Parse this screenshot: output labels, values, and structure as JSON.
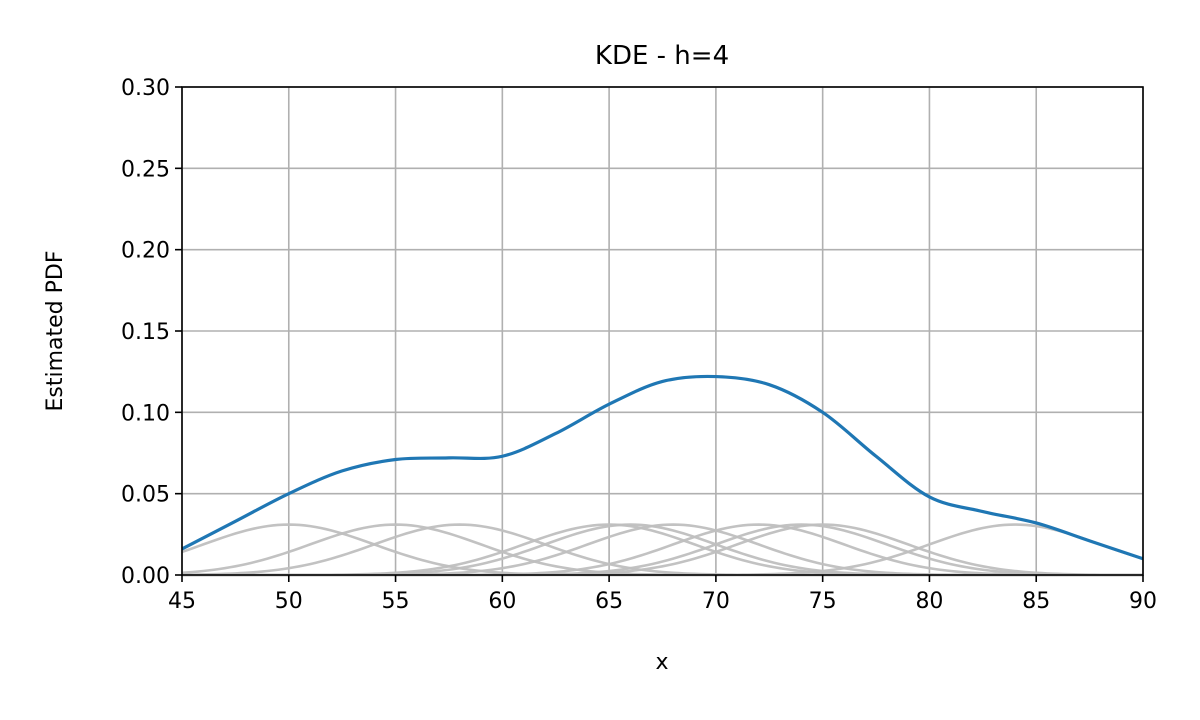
{
  "chart_data": {
    "type": "line",
    "title": "KDE - h=4",
    "xlabel": "x",
    "ylabel": "Estimated PDF",
    "xlim": [
      45,
      90
    ],
    "ylim": [
      0,
      0.3
    ],
    "xticks": [
      45,
      50,
      55,
      60,
      65,
      70,
      75,
      80,
      85,
      90
    ],
    "yticks": [
      0,
      0.05,
      0.1,
      0.15,
      0.2,
      0.25,
      0.3
    ],
    "xtick_labels": [
      "45",
      "50",
      "55",
      "60",
      "65",
      "70",
      "75",
      "80",
      "85",
      "90"
    ],
    "ytick_labels": [
      "0.00",
      "0.05",
      "0.10",
      "0.15",
      "0.20",
      "0.25",
      "0.30"
    ],
    "grid": true,
    "bandwidth": 4,
    "kernel_centers": [
      50,
      55,
      58,
      65,
      66,
      68,
      72,
      74,
      75,
      84
    ],
    "kernel_peak": 0.031,
    "colors": {
      "kde_line": "#1f77b4",
      "kernel_lines": "#bfbfbf",
      "grid": "#b0b0b0",
      "axes": "#000000"
    },
    "series": [
      {
        "x": [
          45,
          47.5,
          50,
          52.5,
          55,
          57.5,
          60,
          62.5,
          65,
          67.5,
          70,
          72.5,
          75,
          77.5,
          80,
          82.5,
          85,
          87.5,
          90
        ],
        "y": [
          0.016,
          0.033,
          0.05,
          0.064,
          0.071,
          0.072,
          0.073,
          0.087,
          0.105,
          0.119,
          0.122,
          0.117,
          0.1,
          0.073,
          0.048,
          0.039,
          0.032,
          0.021,
          0.01
        ]
      }
    ]
  }
}
